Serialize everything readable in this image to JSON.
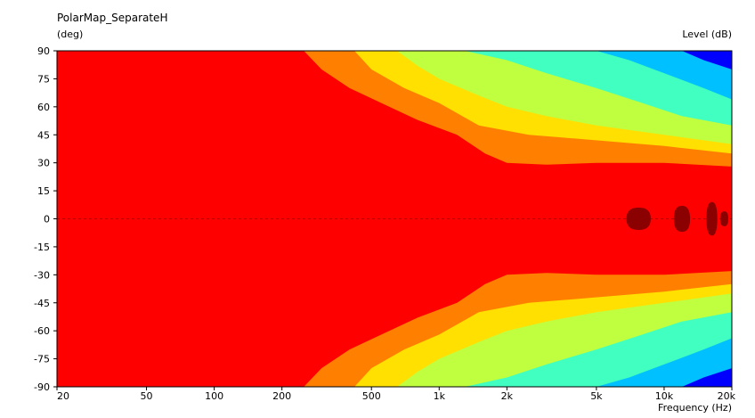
{
  "chart_data": {
    "type": "heatmap",
    "title": "PolarMap_SeparateH",
    "ylabel": "(deg)",
    "xlabel": "Frequency  (Hz)",
    "colorbar_label": "Level  (dB)",
    "x_scale": "log",
    "xlim": [
      20,
      20000
    ],
    "ylim": [
      -90,
      90
    ],
    "x_ticks": [
      {
        "value": 20,
        "label": "20"
      },
      {
        "value": 50,
        "label": "50"
      },
      {
        "value": 100,
        "label": "100"
      },
      {
        "value": 200,
        "label": "200"
      },
      {
        "value": 500,
        "label": "500"
      },
      {
        "value": 1000,
        "label": "1k"
      },
      {
        "value": 2000,
        "label": "2k"
      },
      {
        "value": 5000,
        "label": "5k"
      },
      {
        "value": 10000,
        "label": "10k"
      },
      {
        "value": 20000,
        "label": "20k"
      }
    ],
    "y_ticks": [
      90,
      75,
      60,
      45,
      30,
      15,
      0,
      -15,
      -30,
      -45,
      -60,
      -75,
      -90
    ],
    "bands": [
      {
        "color": "#ff8000",
        "boundary": [
          [
            250,
            90
          ],
          [
            300,
            80
          ],
          [
            400,
            70
          ],
          [
            600,
            60
          ],
          [
            800,
            53
          ],
          [
            1200,
            45
          ],
          [
            1600,
            35
          ],
          [
            2000,
            30
          ],
          [
            3000,
            29
          ],
          [
            5000,
            30
          ],
          [
            10000,
            30
          ],
          [
            20000,
            28
          ]
        ]
      },
      {
        "color": "#ffe000",
        "boundary": [
          [
            420,
            90
          ],
          [
            500,
            80
          ],
          [
            700,
            70
          ],
          [
            1000,
            62
          ],
          [
            1500,
            50
          ],
          [
            2500,
            45
          ],
          [
            4000,
            43
          ],
          [
            10000,
            39
          ],
          [
            20000,
            35
          ]
        ]
      },
      {
        "color": "#bfff40",
        "boundary": [
          [
            650,
            90
          ],
          [
            800,
            82
          ],
          [
            1000,
            75
          ],
          [
            1500,
            66
          ],
          [
            2000,
            60
          ],
          [
            3000,
            55
          ],
          [
            5000,
            50
          ],
          [
            10000,
            45
          ],
          [
            20000,
            40
          ]
        ]
      },
      {
        "color": "#40ffc0",
        "boundary": [
          [
            1300,
            90
          ],
          [
            2000,
            85
          ],
          [
            3000,
            78
          ],
          [
            5000,
            70
          ],
          [
            8000,
            62
          ],
          [
            12000,
            55
          ],
          [
            20000,
            50
          ]
        ]
      },
      {
        "color": "#00c0ff",
        "boundary": [
          [
            5000,
            90
          ],
          [
            7000,
            85
          ],
          [
            10000,
            78
          ],
          [
            15000,
            70
          ],
          [
            20000,
            64
          ]
        ]
      },
      {
        "color": "#0000ff",
        "boundary": [
          [
            12000,
            90
          ],
          [
            15000,
            85
          ],
          [
            20000,
            80
          ]
        ]
      }
    ],
    "base_color": "#ff0000",
    "hotspots_color": "#8b0000",
    "hotspots": [
      {
        "freq": 7700,
        "deg": 0,
        "half_width_oct": 0.18,
        "half_height_deg": 6
      },
      {
        "freq": 12000,
        "deg": 0,
        "half_width_oct": 0.12,
        "half_height_deg": 7
      },
      {
        "freq": 16300,
        "deg": 0,
        "half_width_oct": 0.08,
        "half_height_deg": 9
      },
      {
        "freq": 18500,
        "deg": 0,
        "half_width_oct": 0.06,
        "half_height_deg": 4
      }
    ]
  }
}
